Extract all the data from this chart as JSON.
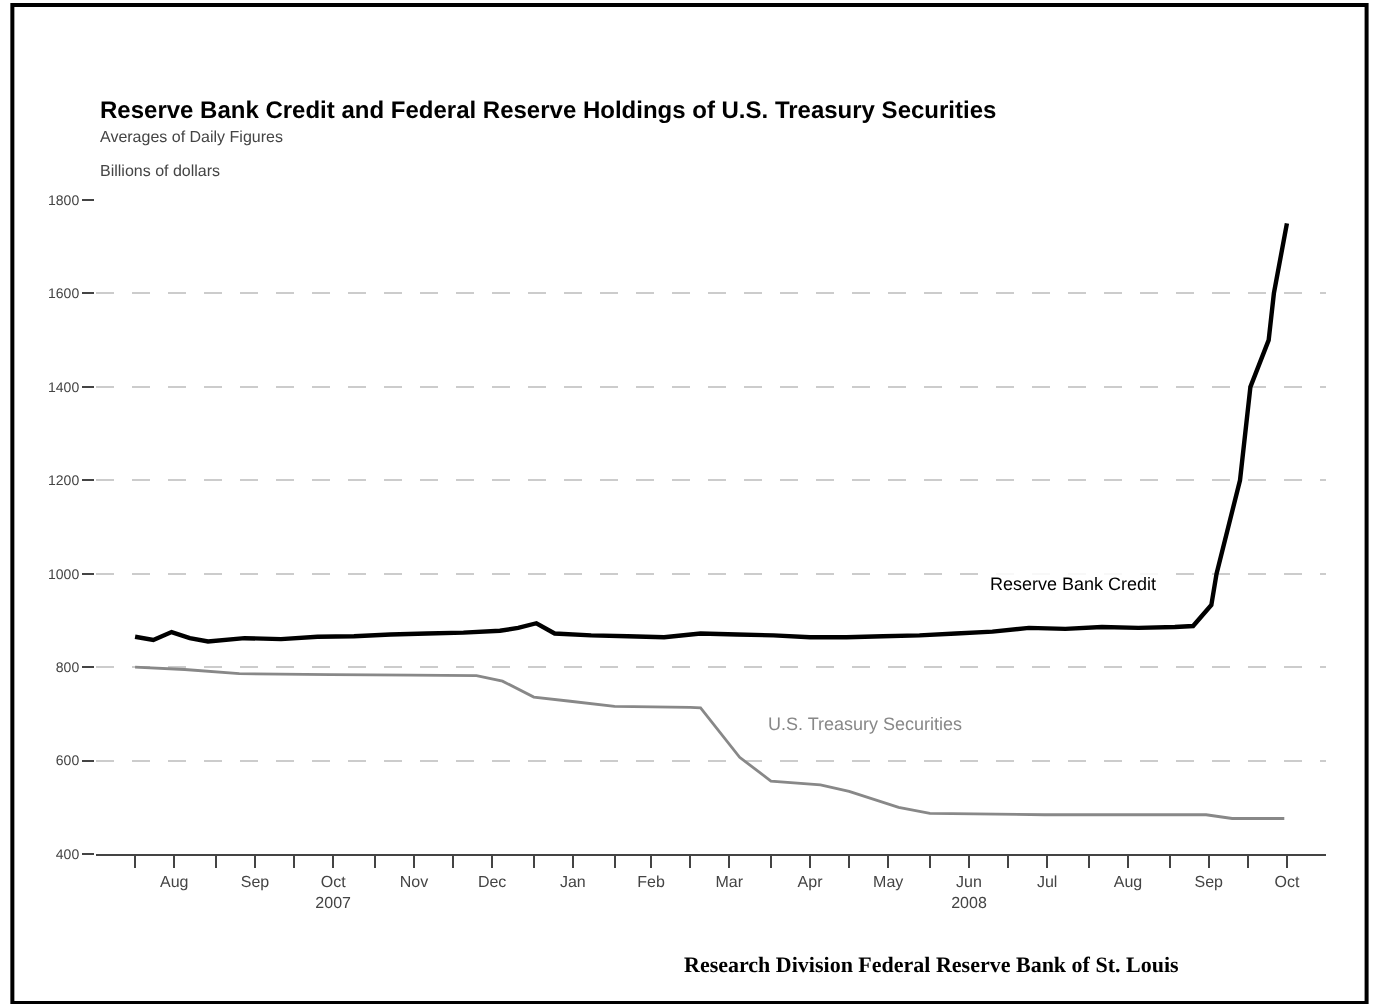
{
  "chart_data": {
    "type": "line",
    "title": "Reserve Bank Credit and Federal Reserve Holdings of U.S. Treasury Securities",
    "subtitle": "Averages of Daily Figures",
    "ylabel": "Billions of dollars",
    "annotations": [
      "Research Division Federal Reserve Bank of St. Louis"
    ],
    "series": [
      {
        "name": "Reserve Bank Credit",
        "color": "#000000",
        "x": [
          "2007-08-01",
          "2007-08-08",
          "2007-08-15",
          "2007-08-22",
          "2007-08-29",
          "2007-09-12",
          "2007-09-26",
          "2007-10-10",
          "2007-10-24",
          "2007-11-07",
          "2007-11-21",
          "2007-12-05",
          "2007-12-19",
          "2007-12-26",
          "2008-01-02",
          "2008-01-09",
          "2008-01-23",
          "2008-02-06",
          "2008-02-20",
          "2008-03-05",
          "2008-03-19",
          "2008-04-02",
          "2008-04-16",
          "2008-04-30",
          "2008-05-14",
          "2008-05-28",
          "2008-06-11",
          "2008-06-25",
          "2008-07-09",
          "2008-07-23",
          "2008-08-06",
          "2008-08-20",
          "2008-09-03",
          "2008-09-10",
          "2008-09-17",
          "2008-09-19",
          "2008-09-28",
          "2008-10-02",
          "2008-10-09",
          "2008-10-11",
          "2008-10-16"
        ],
        "values": [
          865,
          858,
          875,
          862,
          855,
          862,
          860,
          865,
          866,
          870,
          872,
          874,
          878,
          884,
          894,
          872,
          868,
          866,
          864,
          872,
          870,
          868,
          864,
          864,
          866,
          868,
          872,
          876,
          884,
          882,
          886,
          884,
          886,
          888,
          933,
          1000,
          1200,
          1400,
          1500,
          1600,
          1750
        ]
      },
      {
        "name": "U.S. Treasury Securities",
        "color": "#888888",
        "x": [
          "2007-08-01",
          "2007-08-20",
          "2007-09-10",
          "2007-10-15",
          "2007-11-15",
          "2007-12-10",
          "2007-12-20",
          "2008-01-01",
          "2008-01-15",
          "2008-02-01",
          "2008-03-01",
          "2008-03-05",
          "2008-03-20",
          "2008-04-01",
          "2008-04-20",
          "2008-05-01",
          "2008-05-20",
          "2008-06-01",
          "2008-07-15",
          "2008-09-15",
          "2008-09-25",
          "2008-10-15"
        ],
        "values": [
          800,
          795,
          786,
          784,
          783,
          782,
          770,
          736,
          727,
          716,
          714,
          713,
          607,
          556,
          548,
          534,
          500,
          487,
          484,
          484,
          476,
          476
        ]
      }
    ],
    "xlim": [
      "2007-07-17",
      "2008-10-31"
    ],
    "xticks": [
      {
        "value": "2007-08-01",
        "label": null
      },
      {
        "value": "2007-08-16",
        "label": "Aug"
      },
      {
        "value": "2007-09-01",
        "label": null
      },
      {
        "value": "2007-09-16",
        "label": "Sep"
      },
      {
        "value": "2007-10-01",
        "label": null
      },
      {
        "value": "2007-10-16",
        "label": "Oct\n2007"
      },
      {
        "value": "2007-11-01",
        "label": null
      },
      {
        "value": "2007-11-16",
        "label": "Nov"
      },
      {
        "value": "2007-12-01",
        "label": null
      },
      {
        "value": "2007-12-16",
        "label": "Dec"
      },
      {
        "value": "2008-01-01",
        "label": null
      },
      {
        "value": "2008-01-16",
        "label": "Jan"
      },
      {
        "value": "2008-02-01",
        "label": null
      },
      {
        "value": "2008-02-15",
        "label": "Feb"
      },
      {
        "value": "2008-03-01",
        "label": null
      },
      {
        "value": "2008-03-16",
        "label": "Mar"
      },
      {
        "value": "2008-04-01",
        "label": null
      },
      {
        "value": "2008-04-16",
        "label": "Apr"
      },
      {
        "value": "2008-05-01",
        "label": null
      },
      {
        "value": "2008-05-16",
        "label": "May"
      },
      {
        "value": "2008-06-01",
        "label": null
      },
      {
        "value": "2008-06-16",
        "label": "Jun\n2008"
      },
      {
        "value": "2008-07-01",
        "label": null
      },
      {
        "value": "2008-07-16",
        "label": "Jul"
      },
      {
        "value": "2008-08-01",
        "label": null
      },
      {
        "value": "2008-08-16",
        "label": "Aug"
      },
      {
        "value": "2008-09-01",
        "label": null
      },
      {
        "value": "2008-09-16",
        "label": "Sep"
      },
      {
        "value": "2008-10-01",
        "label": null
      },
      {
        "value": "2008-10-16",
        "label": "Oct"
      }
    ],
    "ylim": [
      400,
      1800
    ],
    "yticks": [
      400,
      600,
      800,
      1000,
      1200,
      1400,
      1600,
      1800
    ],
    "grid": "y",
    "legend": false,
    "line_style": "solid",
    "marker": "none"
  }
}
